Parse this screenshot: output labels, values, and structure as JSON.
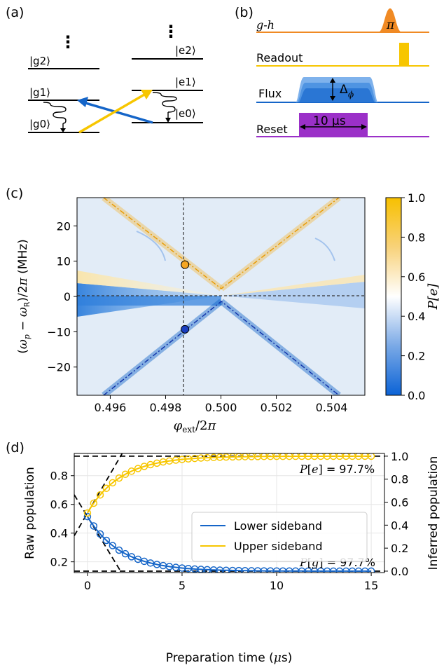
{
  "colors": {
    "blue": "#1565c8",
    "orange": "#f5a623",
    "yellow": "#f7c600",
    "gh": "#f08a24",
    "purple": "#9b30c8",
    "dark_blue": "#1a3fbf"
  },
  "panels": {
    "a": "(a)",
    "b": "(b)",
    "c": "(c)",
    "d": "(d)"
  },
  "panel_a": {
    "left_levels": [
      "|g2⟩",
      "|g1⟩",
      "|g0⟩"
    ],
    "right_levels": [
      "|e2⟩",
      "|e1⟩",
      "|e0⟩"
    ],
    "dots": "⋮"
  },
  "panel_b": {
    "rows": [
      {
        "label": "g-h",
        "annotation": "π",
        "color": "#f08a24"
      },
      {
        "label": "Readout",
        "annotation": "",
        "color": "#f7c600"
      },
      {
        "label": "Flux",
        "annotation": "Δ",
        "annotation_sub": "ϕ",
        "color": "#1565c8"
      },
      {
        "label": "Reset",
        "annotation": "10 μs",
        "color": "#9b30c8"
      }
    ]
  },
  "chart_data": [
    {
      "type": "heatmap",
      "panel": "(c)",
      "xlabel": "φext/2π",
      "ylabel": "(ωp − ωR)/2π (MHz)",
      "xticks": [
        "0.496",
        "0.498",
        "0.500",
        "0.502",
        "0.504"
      ],
      "yticks": [
        "20",
        "10",
        "0",
        "−10",
        "−20"
      ],
      "xlim": [
        0.4948,
        0.5052
      ],
      "ylim": [
        -28,
        28
      ],
      "vline_x": 0.4987,
      "hline_y": 0,
      "markers": [
        {
          "x": 0.4987,
          "y": 9,
          "color": "#f5a623"
        },
        {
          "x": 0.4987,
          "y": -9.3,
          "color": "#1a3fbf"
        }
      ],
      "colorbar": {
        "label": "P[e]",
        "ticks": [
          "1.0",
          "0.8",
          "0.6",
          "0.4",
          "0.2",
          "0.0"
        ],
        "range": [
          0,
          1
        ]
      }
    },
    {
      "type": "line",
      "panel": "(d)",
      "xlabel": "Preparation time (μs)",
      "ylabel": "Raw population",
      "y2label": "Inferred population",
      "xticks": [
        "0",
        "5",
        "10",
        "15"
      ],
      "yticks": [
        "0.8",
        "0.6",
        "0.4",
        "0.2"
      ],
      "y2ticks": [
        "1.0",
        "0.8",
        "0.6",
        "0.4",
        "0.2",
        "0.0"
      ],
      "xlim": [
        -0.7,
        15.7
      ],
      "ylim": [
        0.125,
        0.955
      ],
      "annotations": [
        "P[e] = 97.7%",
        "P[g] = 97.7%"
      ],
      "legend": {
        "placement": "center-right",
        "entries": [
          "Lower sideband",
          "Upper sideband"
        ]
      },
      "series": [
        {
          "name": "Lower sideband",
          "color": "#1565c8",
          "start": 0.515,
          "end": 0.135,
          "tau": 1.75
        },
        {
          "name": "Upper sideband",
          "color": "#f7c600",
          "start": 0.54,
          "end": 0.936,
          "tau": 1.75
        }
      ],
      "sample_x": [
        0,
        0.33,
        0.67,
        1.0,
        1.33,
        1.67,
        2.0,
        2.33,
        2.67,
        3.0,
        3.33,
        3.67,
        4.0,
        4.33,
        4.67,
        5.0,
        5.33,
        5.67,
        6.0,
        6.33,
        6.67,
        7.0,
        7.33,
        7.67,
        8.0,
        8.33,
        8.67,
        9.0,
        9.33,
        9.67,
        10.0,
        10.33,
        10.67,
        11.0,
        11.33,
        11.67,
        12.0,
        12.33,
        12.67,
        13.0,
        13.33,
        13.67,
        14.0,
        14.33,
        14.67,
        15.0
      ]
    }
  ]
}
